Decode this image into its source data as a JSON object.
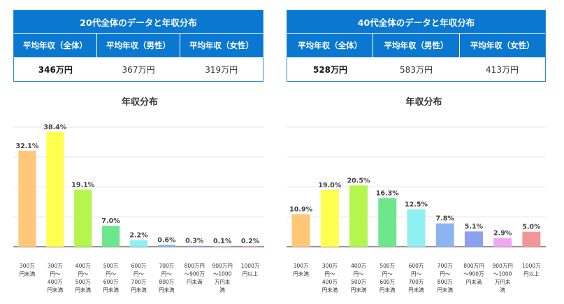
{
  "colors": {
    "header_blue": "#0a78d0",
    "bar_colors": [
      "#ffc878",
      "#ffff50",
      "#b4f550",
      "#6ee68c",
      "#8ef0f0",
      "#8cb4f0",
      "#8ca0f0",
      "#f0a8f0",
      "#f09898"
    ]
  },
  "left": {
    "table": {
      "title": "20代全体のデータと年収分布",
      "headers": [
        "平均年収（全体）",
        "平均年収（男性）",
        "平均年収（女性）"
      ],
      "values": [
        "346万円",
        "367万円",
        "319万円"
      ]
    },
    "chart_title": "年収分布"
  },
  "right": {
    "table": {
      "title": "40代全体のデータと年収分布",
      "headers": [
        "平均年収（全体）",
        "平均年収（男性）",
        "平均年収（女性）"
      ],
      "values": [
        "528万円",
        "583万円",
        "413万円"
      ]
    },
    "chart_title": "年収分布"
  },
  "chart_data": [
    {
      "type": "bar",
      "title": "年収分布",
      "categories": [
        "300万\n円未満",
        "300万\n円～\n400万\n円未満",
        "400万\n円～\n500万\n円未満",
        "500万\n円～\n600万\n円未満",
        "600万\n円～\n700万\n円未満",
        "700万\n円～\n800万\n円未満",
        "800万円\n～900万\n円未満",
        "900万円\n～1000\n万円未\n満",
        "1000万\n円以上"
      ],
      "values": [
        32.1,
        38.4,
        19.1,
        7.0,
        2.2,
        0.6,
        0.3,
        0.1,
        0.2
      ],
      "value_labels": [
        "32.1%",
        "38.4%",
        "19.1%",
        "7.0%",
        "2.2%",
        "0.6%",
        "0.3%",
        "0.1%",
        "0.2%"
      ],
      "ylim": [
        0,
        40
      ],
      "grid": true
    },
    {
      "type": "bar",
      "title": "年収分布",
      "categories": [
        "300万\n円未満",
        "300万\n円～\n400万\n円未満",
        "400万\n円～\n500万\n円未満",
        "500万\n円～\n600万\n円未満",
        "600万\n円～\n700万\n円未満",
        "700万\n円～\n800万\n円未満",
        "800万円\n～900万\n円未満",
        "900万円\n～1000\n万円未\n満",
        "1000万\n円以上"
      ],
      "values": [
        10.9,
        19.0,
        20.5,
        16.3,
        12.5,
        7.8,
        5.1,
        2.9,
        5.0
      ],
      "value_labels": [
        "10.9%",
        "19.0%",
        "20.5%",
        "16.3%",
        "12.5%",
        "7.8%",
        "5.1%",
        "2.9%",
        "5.0%"
      ],
      "ylim": [
        0,
        40
      ],
      "grid": true
    }
  ]
}
